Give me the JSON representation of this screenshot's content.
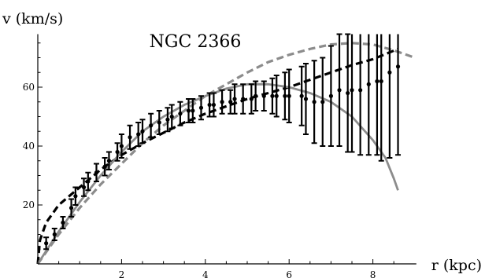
{
  "chart_data": {
    "type": "scatter",
    "title": "NGC 2366",
    "xlabel": "r (kpc)",
    "ylabel": "v (km/s)",
    "xlim": [
      0,
      9.0
    ],
    "ylim": [
      0,
      78
    ],
    "x_ticks": [
      2,
      4,
      6,
      8
    ],
    "x_tick_labels": [
      "2",
      "4",
      "6",
      "8"
    ],
    "y_ticks": [
      20,
      40,
      60
    ],
    "y_tick_labels": [
      "20",
      "40",
      "60"
    ],
    "grid": false,
    "legend": "none",
    "series": [
      {
        "kind": "errorbar",
        "color": "#000000",
        "x": [
          0.2,
          0.4,
          0.6,
          0.8,
          0.9,
          1.1,
          1.2,
          1.4,
          1.6,
          1.7,
          1.9,
          2.0,
          2.2,
          2.4,
          2.5,
          2.7,
          2.9,
          3.1,
          3.2,
          3.4,
          3.6,
          3.7,
          3.9,
          4.1,
          4.2,
          4.4,
          4.6,
          4.7,
          4.9,
          5.1,
          5.2,
          5.4,
          5.6,
          5.7,
          5.9,
          6.0,
          6.3,
          6.4,
          6.6,
          6.8,
          7.0,
          7.2,
          7.4,
          7.5,
          7.7,
          7.9,
          8.1,
          8.2,
          8.4,
          8.6
        ],
        "y": [
          7,
          10,
          14,
          19,
          23,
          26,
          28,
          31,
          33,
          35,
          38,
          40,
          43,
          44,
          45,
          47,
          48,
          49,
          50,
          51,
          52,
          52,
          53,
          54,
          54,
          55,
          55,
          56,
          56,
          56,
          57,
          57,
          57,
          57,
          57,
          57,
          57,
          56,
          55,
          55,
          57,
          59,
          58,
          59,
          59,
          61,
          62,
          62,
          65,
          67
        ],
        "err": [
          2,
          2,
          2,
          3,
          3,
          3,
          3,
          3,
          3,
          3,
          3,
          4,
          4,
          4,
          4,
          4,
          4,
          4,
          4,
          4,
          4,
          4,
          4,
          4,
          4,
          4,
          4,
          5,
          5,
          5,
          5,
          5,
          6,
          7,
          8,
          9,
          10,
          12,
          14,
          15,
          17,
          19,
          20,
          21,
          22,
          24,
          25,
          27,
          29,
          30
        ]
      },
      {
        "kind": "line",
        "style": "dashed",
        "color": "#000000",
        "x": [
          0,
          0.05,
          0.2,
          0.5,
          1.0,
          1.5,
          2.0,
          2.5,
          3.0,
          3.5,
          4.0,
          4.5,
          5.0,
          5.5,
          6.0,
          6.5,
          7.0,
          7.5,
          8.0,
          8.6
        ],
        "y": [
          0,
          8,
          14,
          20,
          26,
          32,
          37,
          41,
          44.5,
          48,
          51,
          53.5,
          56,
          58,
          60,
          62.5,
          65,
          67.5,
          69.5,
          73
        ]
      },
      {
        "kind": "line",
        "style": "dashed",
        "color": "#8c8c8c",
        "x": [
          0,
          0.5,
          1.0,
          1.5,
          2.0,
          2.5,
          3.0,
          3.5,
          4.0,
          4.5,
          5.0,
          5.5,
          6.0,
          6.5,
          7.0,
          7.5,
          8.0,
          8.5,
          9.0
        ],
        "y": [
          0,
          10,
          19,
          27,
          34,
          41,
          47,
          52,
          57,
          61,
          65,
          68.5,
          71,
          73,
          74.5,
          75,
          74.5,
          72.5,
          70
        ]
      },
      {
        "kind": "line",
        "style": "solid",
        "color": "#8c8c8c",
        "x": [
          0,
          0.5,
          1.0,
          1.5,
          2.0,
          2.5,
          3.0,
          3.5,
          4.0,
          4.5,
          5.0,
          5.5,
          6.0,
          6.5,
          7.0,
          7.5,
          8.0,
          8.3,
          8.5,
          8.6
        ],
        "y": [
          0,
          11,
          21,
          30,
          38,
          45,
          50,
          54,
          57,
          59.5,
          61,
          61,
          60,
          58,
          55,
          50,
          42,
          36,
          29,
          25
        ]
      }
    ]
  }
}
